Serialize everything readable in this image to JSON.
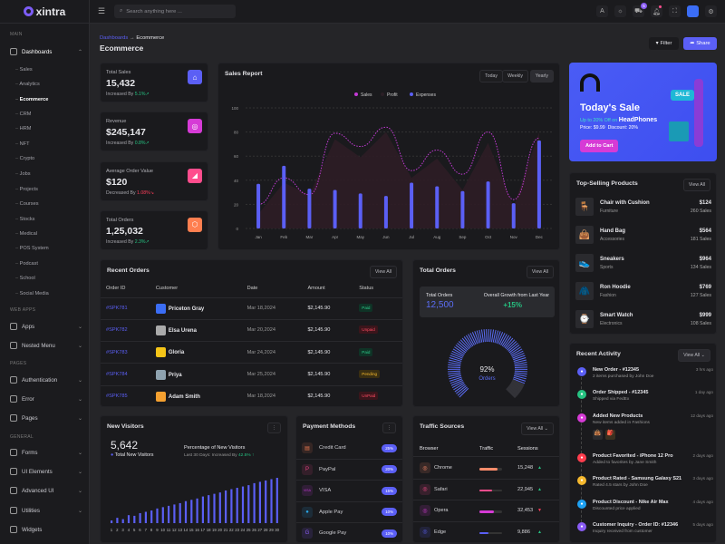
{
  "brand": "xintra",
  "search_placeholder": "Search anything here ...",
  "header": {
    "cart_count": "5"
  },
  "sidebar": {
    "main_label": "MAIN",
    "dashboards": "Dashboards",
    "sub": [
      "Sales",
      "Analytics",
      "Ecommerce",
      "CRM",
      "HRM",
      "NFT",
      "Crypto",
      "Jobs",
      "Projects",
      "Courses",
      "Stocks",
      "Medical",
      "POS System",
      "Podcast",
      "School",
      "Social Media"
    ],
    "web_apps_label": "WEB APPS",
    "apps": "Apps",
    "nested": "Nested Menu",
    "pages_label": "PAGES",
    "auth": "Authentication",
    "error": "Error",
    "pages": "Pages",
    "general_label": "GENERAL",
    "forms": "Forms",
    "ui": "UI Elements",
    "advanced": "Advanced UI",
    "utilities": "Utilities",
    "widgets": "Widgets"
  },
  "breadcrumb": {
    "parent": "Dashboards",
    "sep": "→",
    "current": "Ecommerce"
  },
  "page_title": "Ecommerce",
  "actions": {
    "filter": "Filter",
    "share": "Share"
  },
  "stats": [
    {
      "label": "Total Sales",
      "value": "15,432",
      "prefix": "Increased By ",
      "change": "5.1%",
      "dir": "up",
      "color": "#5b5ff5",
      "icon": "⌂"
    },
    {
      "label": "Revenue",
      "value": "$245,147",
      "prefix": "Increased By ",
      "change": "0.8%",
      "dir": "up",
      "color": "#d63bd6",
      "icon": "◎"
    },
    {
      "label": "Average Order Value",
      "value": "$120",
      "prefix": "Decreased By ",
      "change": "1.08%",
      "dir": "down",
      "color": "#ff4d8d",
      "icon": "◢"
    },
    {
      "label": "Total Orders",
      "value": "1,25,032",
      "prefix": "Increased By ",
      "change": "2.3%",
      "dir": "up",
      "color": "#ff7f50",
      "icon": "⬡"
    }
  ],
  "sales_report": {
    "title": "Sales Report",
    "tabs": [
      "Today",
      "Weekly",
      "Yearly"
    ],
    "active_tab": "Yearly"
  },
  "chart_data": [
    {
      "type": "bar",
      "title": "Sales Report",
      "categories": [
        "Jan",
        "Feb",
        "Mar",
        "Apr",
        "May",
        "Jun",
        "Jul",
        "Aug",
        "Sep",
        "Oct",
        "Nov",
        "Dec"
      ],
      "ylim": [
        0,
        100
      ],
      "yticks": [
        0,
        20,
        40,
        60,
        80,
        100
      ],
      "legend": "top-center",
      "grid": true,
      "series": [
        {
          "name": "Sales",
          "type": "line",
          "color": "#c43ad6",
          "values": [
            20,
            42,
            28,
            79,
            68,
            84,
            48,
            65,
            45,
            80,
            24,
            75
          ]
        },
        {
          "name": "Profit",
          "type": "area",
          "color": "#3a1f2c",
          "values": [
            12,
            38,
            28,
            74,
            59,
            80,
            42,
            58,
            32,
            71,
            18,
            80
          ]
        },
        {
          "name": "Expenses",
          "type": "bar",
          "color": "#5b5ff5",
          "values": [
            37,
            52,
            33,
            32,
            29,
            27,
            38,
            35,
            31,
            39,
            21,
            73
          ]
        }
      ]
    },
    {
      "type": "bar",
      "title": "New Visitors",
      "categories": [
        "1",
        "2",
        "3",
        "4",
        "5",
        "6",
        "7",
        "8",
        "9",
        "10",
        "11",
        "12",
        "13",
        "14",
        "15",
        "16",
        "17",
        "18",
        "19",
        "20",
        "21",
        "22",
        "23",
        "24",
        "25",
        "26",
        "27",
        "28",
        "29",
        "30"
      ],
      "values": [
        4,
        8,
        6,
        12,
        11,
        15,
        17,
        19,
        22,
        24,
        26,
        28,
        30,
        33,
        35,
        37,
        40,
        42,
        44,
        46,
        49,
        51,
        53,
        55,
        57,
        60,
        62,
        64,
        66,
        68
      ]
    },
    {
      "type": "gauge",
      "title": "Orders",
      "value": 92,
      "max": 100
    }
  ],
  "banner": {
    "title": "Today's Sale",
    "promo": "Up to 20% Off on ",
    "product": "HeadPhones",
    "price": "Price: $9.99",
    "discount": "Discount: 20%",
    "sale_tag": "SALE",
    "cta": "Add to Cart"
  },
  "top_products": {
    "title": "Top-Selling Products",
    "view_all": "View All",
    "items": [
      {
        "name": "Chair with Cushion",
        "cat": "Furniture",
        "price": "$124",
        "sales": "260 Sales",
        "icon": "🪑"
      },
      {
        "name": "Hand Bag",
        "cat": "Accessories",
        "price": "$564",
        "sales": "181 Sales",
        "icon": "👜"
      },
      {
        "name": "Sneakers",
        "cat": "Sports",
        "price": "$964",
        "sales": "134 Sales",
        "icon": "👟"
      },
      {
        "name": "Ron Hoodie",
        "cat": "Fashion",
        "price": "$769",
        "sales": "127 Sales",
        "icon": "🧥"
      },
      {
        "name": "Smart Watch",
        "cat": "Electronics",
        "price": "$999",
        "sales": "108 Sales",
        "icon": "⌚"
      }
    ]
  },
  "recent_orders": {
    "title": "Recent Orders",
    "view_all": "View All",
    "columns": [
      "Order ID",
      "Customer",
      "Date",
      "Amount",
      "Status"
    ],
    "rows": [
      {
        "id": "#SPK781",
        "customer": "Priceton Gray",
        "date": "Mar 18,2024",
        "amount": "$2,145.90",
        "status": "Paid",
        "cls": "paid",
        "av": "#3b6df5"
      },
      {
        "id": "#SPK782",
        "customer": "Elsa Urena",
        "date": "Mar 20,2024",
        "amount": "$2,145.90",
        "status": "Unpaid",
        "cls": "unpaid",
        "av": "#aaa"
      },
      {
        "id": "#SPK783",
        "customer": "Gloria",
        "date": "Mar 24,2024",
        "amount": "$2,145.90",
        "status": "Paid",
        "cls": "paid",
        "av": "#f5c518"
      },
      {
        "id": "#SPK784",
        "customer": "Priya",
        "date": "Mar 25,2024",
        "amount": "$2,145.90",
        "status": "Pending",
        "cls": "pending",
        "av": "#8fa3b0"
      },
      {
        "id": "#SPK785",
        "customer": "Adam Smith",
        "date": "Mar 18,2024",
        "amount": "$2,145.90",
        "status": "UnPaid",
        "cls": "unpaid",
        "av": "#f5a030"
      }
    ]
  },
  "total_orders": {
    "title": "Total Orders",
    "view_all": "View All",
    "label": "Total Orders",
    "value": "12,500",
    "growth_label": "Overall Growth from Last Year",
    "growth": "+15%",
    "gauge_pct": "92%",
    "gauge_label": "Orders"
  },
  "new_visitors": {
    "title": "New Visitors",
    "total": "5,642",
    "total_label": "Total New Visitors",
    "pct_title": "Percentage of New Visitors",
    "pct_sub": "Last 30 Days: Increased By ",
    "pct_value": "42.5%"
  },
  "payment": {
    "title": "Payment Methods",
    "items": [
      {
        "name": "Credit Card",
        "pct": "25%",
        "icon": "▤",
        "color": "#e9784f"
      },
      {
        "name": "PayPal",
        "pct": "20%",
        "icon": "P",
        "color": "#e0407f"
      },
      {
        "name": "VISA",
        "pct": "15%",
        "icon": "VISA",
        "color": "#c43ad6"
      },
      {
        "name": "Apple Pay",
        "pct": "10%",
        "icon": "",
        "color": "#2aa8e8"
      },
      {
        "name": "Google Pay",
        "pct": "10%",
        "icon": "G",
        "color": "#8a5cf5"
      }
    ]
  },
  "traffic": {
    "title": "Traffic Sources",
    "view_all": "View All",
    "columns": [
      "Browser",
      "Traffic",
      "Sessions"
    ],
    "rows": [
      {
        "name": "Chrome",
        "traffic": 80,
        "sessions": "15,248",
        "dir": "up",
        "color": "#ff8c6b"
      },
      {
        "name": "Safari",
        "traffic": 55,
        "sessions": "22,945",
        "dir": "up",
        "color": "#ff4d8d"
      },
      {
        "name": "Opera",
        "traffic": 65,
        "sessions": "32,453",
        "dir": "down",
        "color": "#d63bd6"
      },
      {
        "name": "Edge",
        "traffic": 40,
        "sessions": "9,886",
        "dir": "up",
        "color": "#5b5ff5"
      }
    ]
  },
  "activity": {
    "title": "Recent Activity",
    "view_all": "View All",
    "items": [
      {
        "title": "New Order - #12345",
        "desc": "2 items purchased by John Doe",
        "time": "3 hrs ago",
        "color": "#5b5ff5"
      },
      {
        "title": "Order Shipped - #12345",
        "desc": "Shipped via FedEx",
        "time": "1 day ago",
        "color": "#26c281"
      },
      {
        "title": "Added New Products",
        "desc": "New items added in Fashions",
        "time": "12 days ago",
        "color": "#d63bd6"
      },
      {
        "title": "Product Favorited - iPhone 12 Pro",
        "desc": "Added to favorites by Jane Smith",
        "time": "2 days ago",
        "color": "#ff3d4d"
      },
      {
        "title": "Product Rated - Samsung Galaxy S21",
        "desc": "Rated 4.5 stars by John Doe",
        "time": "3 days ago",
        "color": "#f5b82e"
      },
      {
        "title": "Product Discount - Nike Air Max",
        "desc": "Discounted price applied",
        "time": "4 days ago",
        "color": "#1ea1f2"
      },
      {
        "title": "Customer Inquiry - Order ID: #12346",
        "desc": "Inquiry received from customer",
        "time": "5 days ago",
        "color": "#8a5cf5"
      }
    ]
  }
}
